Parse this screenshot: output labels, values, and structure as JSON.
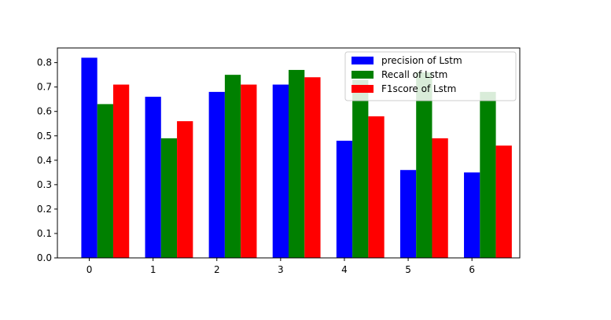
{
  "chart_data": {
    "type": "bar",
    "categories": [
      "0",
      "1",
      "2",
      "3",
      "4",
      "5",
      "6"
    ],
    "series": [
      {
        "name": "precision of Lstm",
        "color": "#0000ff",
        "values": [
          0.82,
          0.66,
          0.68,
          0.71,
          0.48,
          0.36,
          0.35
        ]
      },
      {
        "name": "Recall of Lstm",
        "color": "#008000",
        "values": [
          0.63,
          0.49,
          0.75,
          0.77,
          0.73,
          0.76,
          0.68
        ]
      },
      {
        "name": "F1score of Lstm",
        "color": "#ff0000",
        "values": [
          0.71,
          0.56,
          0.71,
          0.74,
          0.58,
          0.49,
          0.46
        ]
      }
    ],
    "ylim": [
      0.0,
      0.86
    ],
    "yticks": [
      "0.0",
      "0.1",
      "0.2",
      "0.3",
      "0.4",
      "0.5",
      "0.6",
      "0.7",
      "0.8"
    ],
    "title": "",
    "xlabel": "",
    "ylabel": "",
    "grid": false,
    "legend_position": "top-right"
  }
}
